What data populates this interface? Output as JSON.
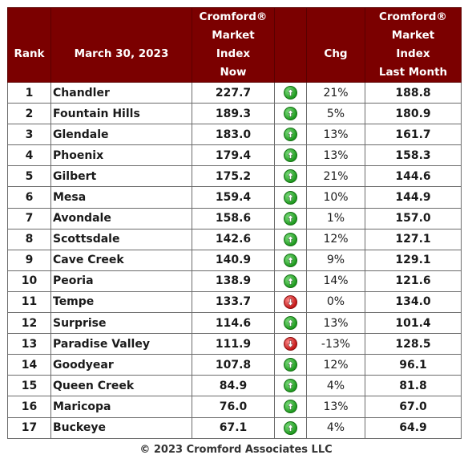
{
  "headers": {
    "rank": "Rank",
    "date": "March 30, 2023",
    "now_lines": [
      "Cromford®",
      "Market",
      "Index",
      "Now"
    ],
    "arrow": "",
    "chg": "Chg",
    "last_lines": [
      "Cromford®",
      "Market",
      "Index",
      "Last Month"
    ]
  },
  "rows": [
    {
      "rank": "1",
      "city": "Chandler",
      "now": "227.7",
      "dir": "up",
      "chg": "21%",
      "last": "188.8"
    },
    {
      "rank": "2",
      "city": "Fountain Hills",
      "now": "189.3",
      "dir": "up",
      "chg": "5%",
      "last": "180.9"
    },
    {
      "rank": "3",
      "city": "Glendale",
      "now": "183.0",
      "dir": "up",
      "chg": "13%",
      "last": "161.7"
    },
    {
      "rank": "4",
      "city": "Phoenix",
      "now": "179.4",
      "dir": "up",
      "chg": "13%",
      "last": "158.3"
    },
    {
      "rank": "5",
      "city": "Gilbert",
      "now": "175.2",
      "dir": "up",
      "chg": "21%",
      "last": "144.6"
    },
    {
      "rank": "6",
      "city": "Mesa",
      "now": "159.4",
      "dir": "up",
      "chg": "10%",
      "last": "144.9"
    },
    {
      "rank": "7",
      "city": "Avondale",
      "now": "158.6",
      "dir": "up",
      "chg": "1%",
      "last": "157.0"
    },
    {
      "rank": "8",
      "city": "Scottsdale",
      "now": "142.6",
      "dir": "up",
      "chg": "12%",
      "last": "127.1"
    },
    {
      "rank": "9",
      "city": "Cave Creek",
      "now": "140.9",
      "dir": "up",
      "chg": "9%",
      "last": "129.1"
    },
    {
      "rank": "10",
      "city": "Peoria",
      "now": "138.9",
      "dir": "up",
      "chg": "14%",
      "last": "121.6"
    },
    {
      "rank": "11",
      "city": "Tempe",
      "now": "133.7",
      "dir": "down",
      "chg": "0%",
      "last": "134.0"
    },
    {
      "rank": "12",
      "city": "Surprise",
      "now": "114.6",
      "dir": "up",
      "chg": "13%",
      "last": "101.4"
    },
    {
      "rank": "13",
      "city": "Paradise Valley",
      "now": "111.9",
      "dir": "down",
      "chg": "-13%",
      "last": "128.5"
    },
    {
      "rank": "14",
      "city": "Goodyear",
      "now": "107.8",
      "dir": "up",
      "chg": "12%",
      "last": "96.1"
    },
    {
      "rank": "15",
      "city": "Queen Creek",
      "now": "84.9",
      "dir": "up",
      "chg": "4%",
      "last": "81.8"
    },
    {
      "rank": "16",
      "city": "Maricopa",
      "now": "76.0",
      "dir": "up",
      "chg": "13%",
      "last": "67.0"
    },
    {
      "rank": "17",
      "city": "Buckeye",
      "now": "67.1",
      "dir": "up",
      "chg": "4%",
      "last": "64.9"
    }
  ],
  "footer": "© 2023 Cromford Associates LLC",
  "colors": {
    "header_bg": "#7b0000",
    "up": "#1f9a1f",
    "down": "#c41818"
  }
}
